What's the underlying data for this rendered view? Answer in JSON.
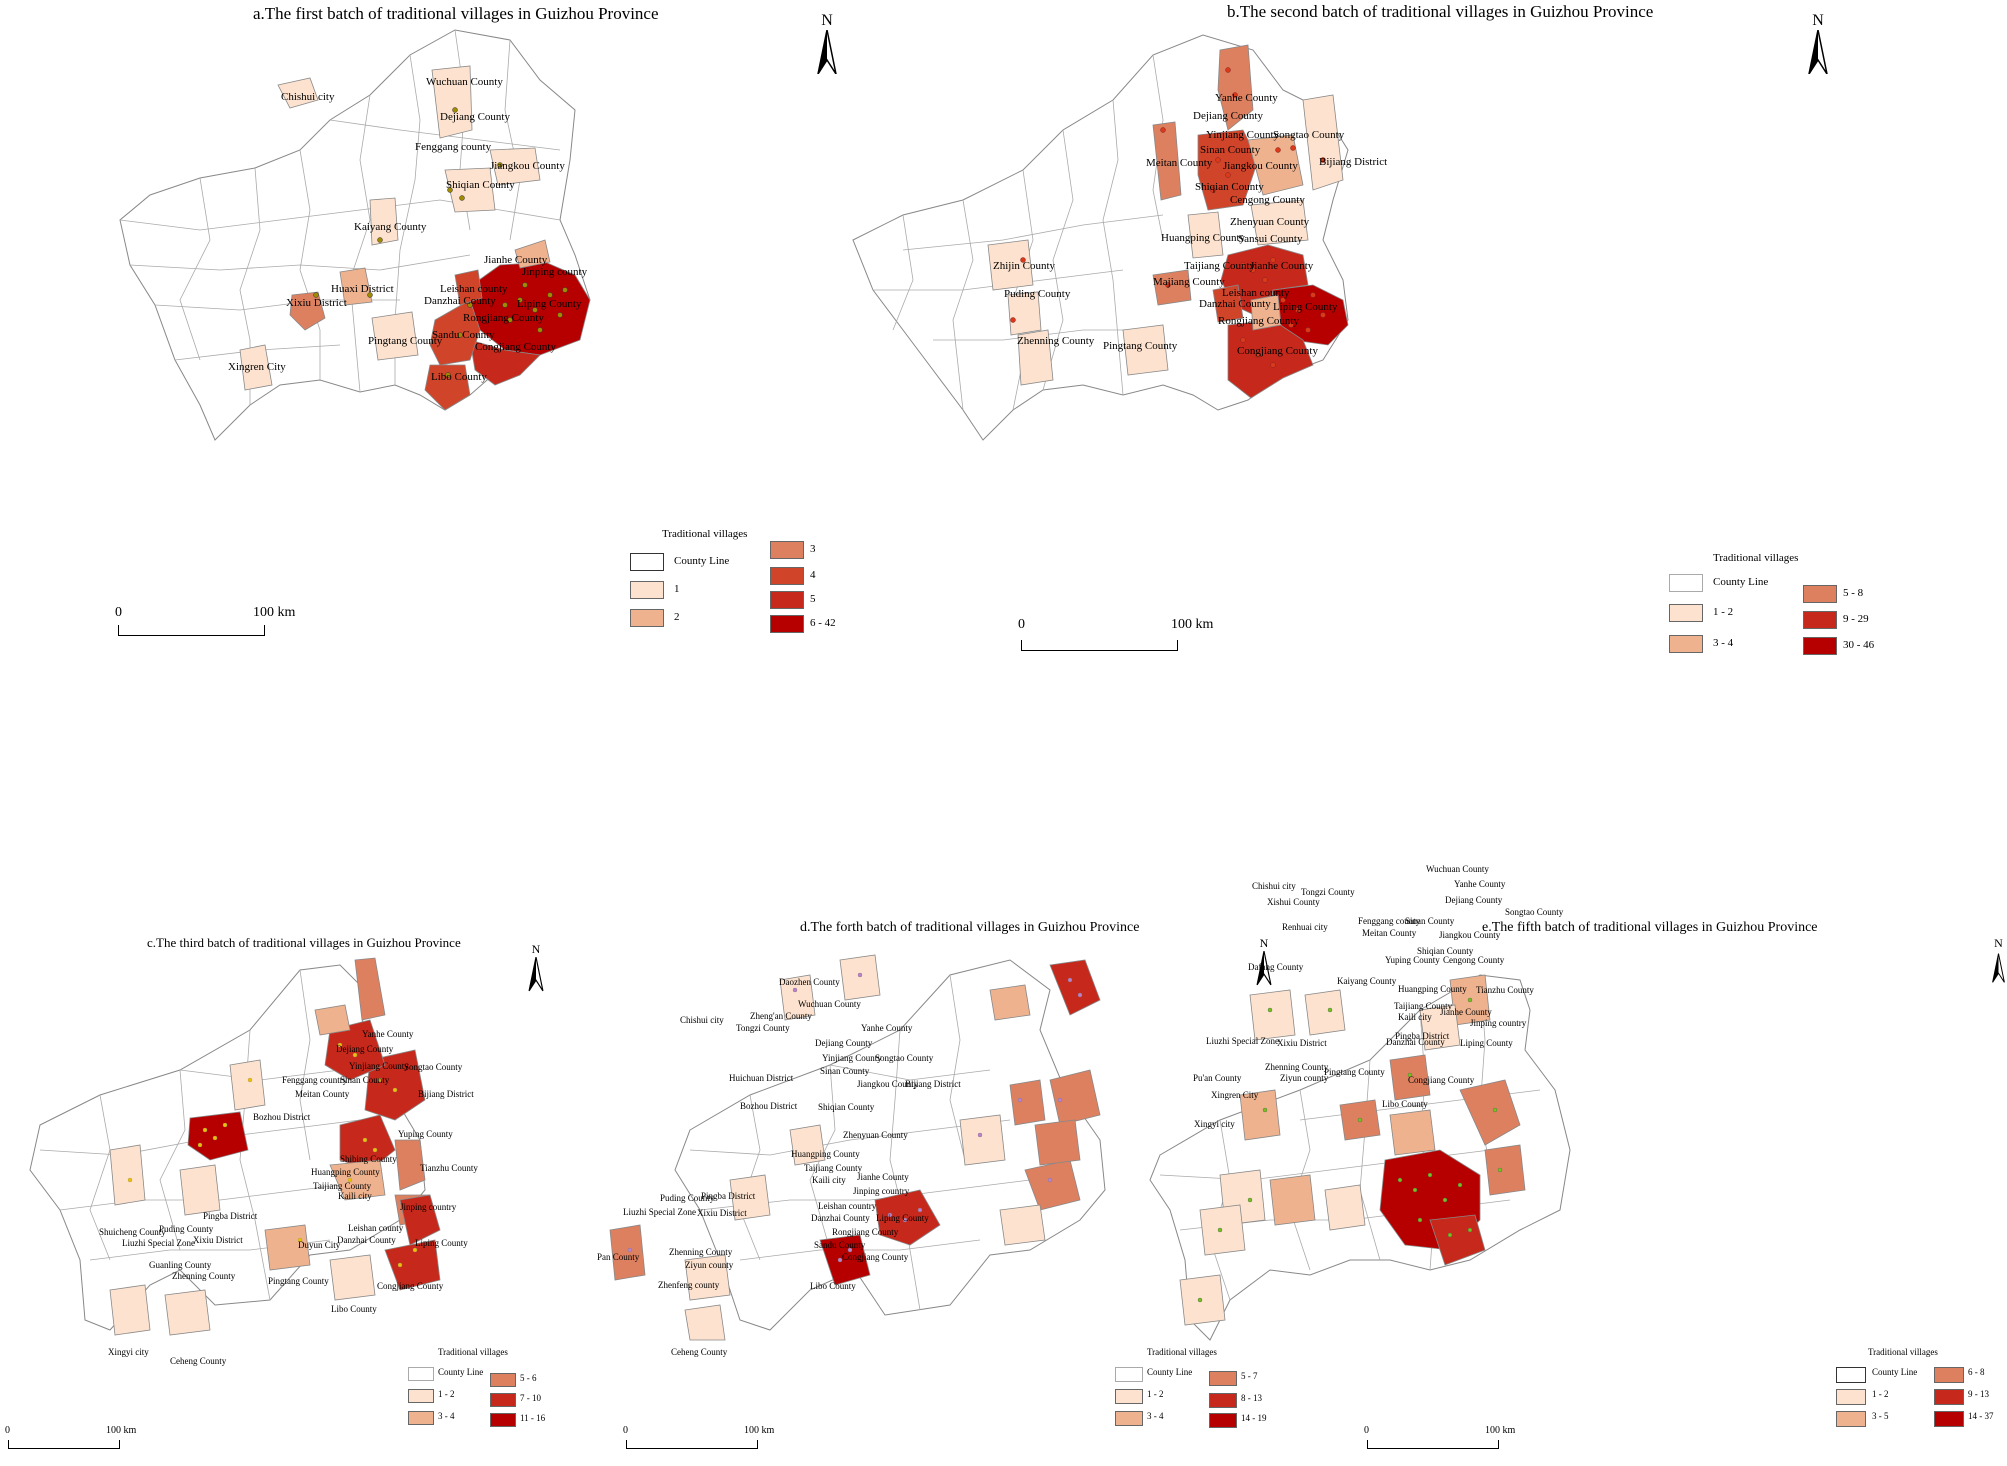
{
  "colors": {
    "county_line": "#888888",
    "c_white": "#ffffff",
    "c_pale": "#fde3cf",
    "c_light": "#eeb28f",
    "c_mid": "#dd8060",
    "c_strong": "#d0442a",
    "c_red": "#c6291c",
    "c_dark": "#b60000",
    "dot_a": "#a08a00",
    "dot_b": "#d83a1a",
    "dot_c": "#f0c000",
    "dot_d": "#c080d0",
    "dot_e": "#7cc020"
  },
  "panels": [
    {
      "id": "a",
      "title": "a.The first batch of traditional  villages in Guizhou Province",
      "north": "N",
      "legend": {
        "title": "Traditional villages",
        "items": [
          {
            "label": "County Line",
            "color": "#ffffff"
          },
          {
            "label": "1",
            "color": "#fde3cf"
          },
          {
            "label": "2",
            "color": "#eeb28f"
          },
          {
            "label": "3",
            "color": "#dd8060"
          },
          {
            "label": "4",
            "color": "#d0442a"
          },
          {
            "label": "5",
            "color": "#c6291c"
          },
          {
            "label": "6 - 42",
            "color": "#b60000"
          }
        ]
      },
      "scale": {
        "start": "0",
        "end": "100 km"
      },
      "counties": [
        "Wuchuan County",
        "Chishui city",
        "Dejiang County",
        "Fenggang county",
        "Jiangkou County",
        "Shiqian County",
        "Kaiyang County",
        "Jinping county",
        "Jianhe County",
        "Xixiu District",
        "Huaxi District",
        "Leishan county",
        "Danzhai County",
        "Liping County",
        "Rongjiang County",
        "Sandu County",
        "Pingtang County",
        "Congjiang County",
        "Xingren City",
        "Libo County"
      ]
    },
    {
      "id": "b",
      "title": "b.The second batch of traditional villages in Guizhou Province",
      "north": "N",
      "legend": {
        "title": "Traditional villages",
        "items": [
          {
            "label": "County Line",
            "color": "#ffffff"
          },
          {
            "label": "1 - 2",
            "color": "#fde3cf"
          },
          {
            "label": "3 - 4",
            "color": "#eeb28f"
          },
          {
            "label": "5 - 8",
            "color": "#dd8060"
          },
          {
            "label": "9 - 29",
            "color": "#c6291c"
          },
          {
            "label": "30 - 46",
            "color": "#b60000"
          }
        ]
      },
      "scale": {
        "start": "0",
        "end": "100 km"
      },
      "counties": [
        "Yanhe County",
        "Dejiang County",
        "Yinjiang County",
        "Songtao County",
        "Sinan County",
        "Meitan County",
        "Jiangkou County",
        "Bijiang District",
        "Shiqian County",
        "Cengong County",
        "Zhenyuan County",
        "Huangping County",
        "Sansui County",
        "Zhijin County",
        "Taijiang County",
        "Jianhe County",
        "Majiang County",
        "Leishan county",
        "Puding County",
        "Danzhai County",
        "Liping County",
        "Rongjiang County",
        "Zhenning County",
        "Pingtang County",
        "Congjiang County"
      ]
    },
    {
      "id": "c",
      "title": "c.The third batch of traditional villages in Guizhou Province",
      "north": "N",
      "legend": {
        "title": "Traditional villages",
        "items": [
          {
            "label": "County Line",
            "color": "#ffffff"
          },
          {
            "label": "1 - 2",
            "color": "#fde3cf"
          },
          {
            "label": "3 - 4",
            "color": "#eeb28f"
          },
          {
            "label": "5 - 6",
            "color": "#dd8060"
          },
          {
            "label": "7 - 10",
            "color": "#c6291c"
          },
          {
            "label": "11 - 16",
            "color": "#b60000"
          }
        ]
      },
      "scale": {
        "start": "0",
        "end": "100 km"
      },
      "counties": [
        "Yanhe County",
        "Dejiang County",
        "Yinjiang County",
        "Songtao County",
        "Fenggang country",
        "Sinan County",
        "Meitan County",
        "Bijiang District",
        "Bozhou District",
        "Yuping County",
        "Shibing County",
        "Tianzhu County",
        "Huangping County",
        "Taijiang County",
        "Kaili city",
        "Jinping country",
        "Pingba District",
        "Puding County",
        "Shuicheng County",
        "Liuzhi Special Zone",
        "Xixiu District",
        "Leishan county",
        "Danzhai County",
        "Duyun City",
        "Liping County",
        "Guanling County",
        "Zhenning County",
        "Pingtang County",
        "Congjiang County",
        "Libo County",
        "Xingyi city",
        "Ceheng County"
      ]
    },
    {
      "id": "d",
      "title": "d.The forth batch of traditional villages in Guizhou Province",
      "north": "N",
      "legend": {
        "title": "Traditional villages",
        "items": [
          {
            "label": "County Line",
            "color": "#ffffff"
          },
          {
            "label": "1 - 2",
            "color": "#fde3cf"
          },
          {
            "label": "3 - 4",
            "color": "#eeb28f"
          },
          {
            "label": "5 - 7",
            "color": "#dd8060"
          },
          {
            "label": "8 - 13",
            "color": "#c6291c"
          },
          {
            "label": "14 - 19",
            "color": "#b60000"
          }
        ]
      },
      "scale": {
        "start": "0",
        "end": "100 km"
      },
      "counties": [
        "Daozhen County",
        "Wuchuan County",
        "Zheng'an County",
        "Tongzi County",
        "Chishui city",
        "Yanhe County",
        "Dejiang County",
        "Yinjiang County",
        "Songtao County",
        "Sinan County",
        "Huichuan District",
        "Jiangkou County",
        "Bijiang District",
        "Shiqian County",
        "Bozhou District",
        "Zhenyuan County",
        "Huangping County",
        "Taijiang County",
        "Kaili city",
        "Jianhe County",
        "Jinping country",
        "Puding County",
        "Pingba District",
        "Liuzhi Special Zone",
        "Xixiu District",
        "Leishan country",
        "Danzhai County",
        "Liping County",
        "Rongjiang County",
        "Sandu County",
        "Congjiang County",
        "Pan County",
        "Zhenning County",
        "Ziyun county",
        "Zhenfeng county",
        "Libo County",
        "Ceheng County"
      ]
    },
    {
      "id": "e",
      "title": "e.The fifth batch of traditional villages in Guizhou Province",
      "north": "N",
      "legend": {
        "title": "Traditional villages",
        "items": [
          {
            "label": "County Line",
            "color": "#ffffff"
          },
          {
            "label": "1 - 2",
            "color": "#fde3cf"
          },
          {
            "label": "3 - 5",
            "color": "#eeb28f"
          },
          {
            "label": "6 - 8",
            "color": "#dd8060"
          },
          {
            "label": "9 - 13",
            "color": "#c6291c"
          },
          {
            "label": "14 - 37",
            "color": "#b60000"
          }
        ]
      },
      "scale": {
        "start": "0",
        "end": "100 km"
      },
      "counties": [
        "Wuchuan County",
        "Chishui city",
        "Tongzi County",
        "Yanhe County",
        "Xishui County",
        "Dejiang County",
        "Songtao County",
        "Renhuai city",
        "Fenggang county",
        "Sinan County",
        "Meitan County",
        "Jiangkou County",
        "Yuping County",
        "Shiqian County",
        "Cengong County",
        "Dafang County",
        "Kaiyang County",
        "Huangping County",
        "Tianzhu County",
        "Taijiang County",
        "Jianhe County",
        "Kaili city",
        "Jinping country",
        "Liuzhi Special Zone",
        "Xixiu District",
        "Pingba District",
        "Liping County",
        "Danzhai County",
        "Zhenning County",
        "Ziyun county",
        "Pingtang County",
        "Pu'an County",
        "Xingren City",
        "Congjiang County",
        "Libo County",
        "Xingyi city"
      ]
    }
  ]
}
